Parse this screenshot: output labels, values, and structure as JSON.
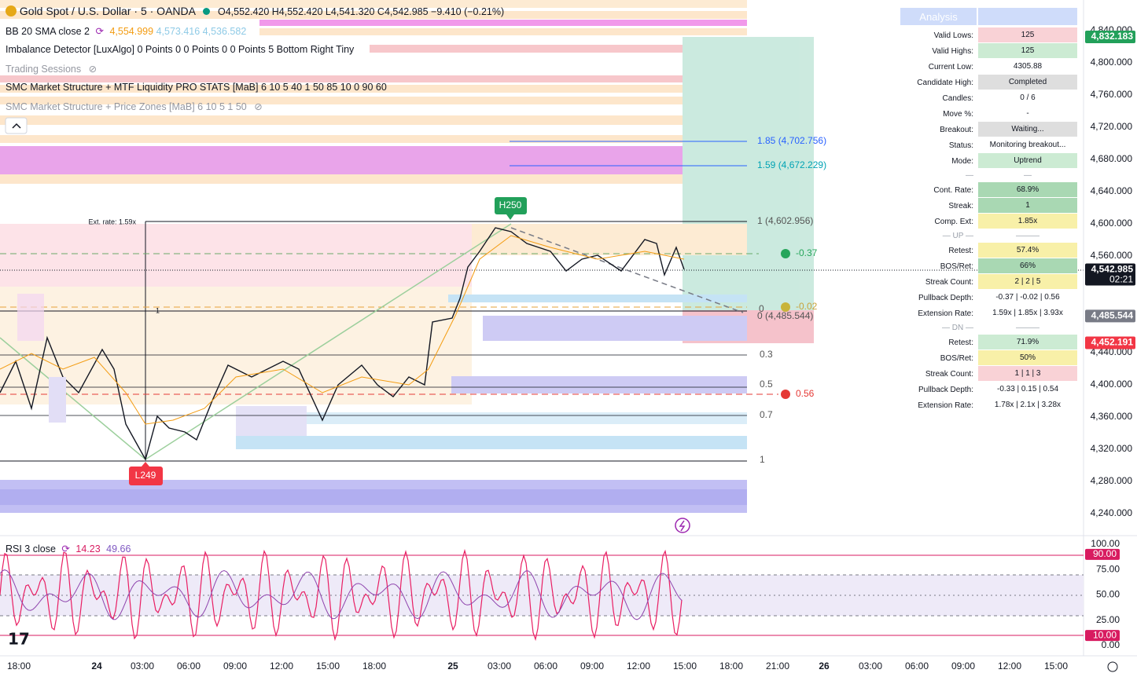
{
  "header": {
    "symbol": "Gold Spot / U.S. Dollar · 5 · OANDA",
    "ohlc": "O4,552.420 H4,552.420 L4,541.320 C4,542.985 −9.410 (−0.21%)"
  },
  "indicators": {
    "bb": {
      "name": "BB 20 SMA close 2",
      "values": [
        "4,554.999",
        "4,573.416",
        "4,536.582"
      ]
    },
    "imbalance": "Imbalance Detector [LuxAlgo] 0 Points 0 0 Points 0 0 Points 5 Bottom Right Tiny",
    "sessions": "Trading Sessions",
    "smc_stats": "SMC Market Structure + MTF Liquidity PRO STATS [MaB] 6 10 5 40 1 50 85 10 0 90 60",
    "smc_zones": "SMC Market Structure + Price Zones [MaB] 6 10 5 1 50"
  },
  "chart_labels": {
    "ext_rate": "Ext. rate: 1.59x",
    "high": "H250",
    "low": "L249",
    "fib_185": "1.85 (4,702.756)",
    "fib_159": "1.59 (4,672.229)",
    "fib_1_top": "1 (4,602.956)",
    "fib_0_mid": "0",
    "fib_0_price": "0 (4,485.544)",
    "fib_03": "0.3",
    "fib_05": "0.5",
    "fib_07": "0.7",
    "fib_1_bottom": "1",
    "dot_green": "-0.37",
    "dot_yellow": "-0.02",
    "dot_red": "0.56",
    "marker_one": "1"
  },
  "analysis": {
    "title": "Analysis",
    "rows": [
      {
        "label": "Valid Lows:",
        "value": "125",
        "color": "#f9d2d6"
      },
      {
        "label": "Valid Highs:",
        "value": "125",
        "color": "#ccebd3"
      },
      {
        "label": "Current Low:",
        "value": "4305.88",
        "color": "#ffffff"
      },
      {
        "label": "Candidate High:",
        "value": "Completed",
        "color": "#dedede"
      },
      {
        "label": "Candles:",
        "value": "0 / 6",
        "color": "#ffffff"
      },
      {
        "label": "Move %:",
        "value": "-",
        "color": "#ffffff"
      },
      {
        "label": "Breakout:",
        "value": "Waiting...",
        "color": "#dedede"
      },
      {
        "label": "Status:",
        "value": "Monitoring breakout...",
        "color": "#ffffff"
      },
      {
        "label": "Mode:",
        "value": "Uptrend",
        "color": "#ccebd3"
      },
      {
        "label": "—",
        "value": "—",
        "color": "#ffffff",
        "separator": true
      },
      {
        "label": "Cont. Rate:",
        "value": "68.9%",
        "color": "#a9d8b3"
      },
      {
        "label": "Streak:",
        "value": "1",
        "color": "#a9d8b3"
      },
      {
        "label": "Comp. Ext:",
        "value": "1.85x",
        "color": "#f8f0a8"
      },
      {
        "label": "— UP —",
        "value": "———",
        "color": "#ffffff",
        "separator": true
      },
      {
        "label": "Retest:",
        "value": "57.4%",
        "color": "#f8f0a8"
      },
      {
        "label": "BOS/Ret:",
        "value": "66%",
        "color": "#a9d8b3"
      },
      {
        "label": "Streak Count:",
        "value": "2 | 2 | 5",
        "color": "#f8f0a8"
      },
      {
        "label": "Pullback Depth:",
        "value": "-0.37 | -0.02 | 0.56",
        "color": "#ffffff"
      },
      {
        "label": "Extension Rate:",
        "value": "1.59x | 1.85x | 3.93x",
        "color": "#ffffff"
      },
      {
        "label": "— DN —",
        "value": "———",
        "color": "#ffffff",
        "separator": true
      },
      {
        "label": "Retest:",
        "value": "71.9%",
        "color": "#ccebd3"
      },
      {
        "label": "BOS/Ret:",
        "value": "50%",
        "color": "#f8f0a8"
      },
      {
        "label": "Streak Count:",
        "value": "1 | 1 | 3",
        "color": "#f9d2d6"
      },
      {
        "label": "Pullback Depth:",
        "value": "-0.33 | 0.15 | 0.54",
        "color": "#ffffff"
      },
      {
        "label": "Extension Rate:",
        "value": "1.78x | 2.1x | 3.28x",
        "color": "#ffffff"
      }
    ]
  },
  "price_axis": {
    "ticks": [
      "4,840.000",
      "4,800.000",
      "4,760.000",
      "4,720.000",
      "4,680.000",
      "4,640.000",
      "4,600.000",
      "4,560.000",
      "4,440.000",
      "4,400.000",
      "4,360.000",
      "4,320.000",
      "4,280.000",
      "4,240.000"
    ],
    "badges": [
      {
        "label": "4,832.183",
        "color": "#22a05a"
      },
      {
        "label": "4,542.985",
        "color": "#131722",
        "sub": "02:21"
      },
      {
        "label": "4,485.544",
        "color": "#787b86"
      },
      {
        "label": "4,452.191",
        "color": "#f23645"
      }
    ]
  },
  "rsi": {
    "name": "RSI 3 close",
    "values": [
      "14.23",
      "49.66"
    ],
    "ticks": [
      "100.00",
      "75.00",
      "50.00",
      "25.00",
      "0.00"
    ],
    "badges": [
      "90.00",
      "10.00"
    ]
  },
  "time_axis": [
    "18:00",
    "24",
    "03:00",
    "06:00",
    "09:00",
    "12:00",
    "15:00",
    "18:00",
    "25",
    "03:00",
    "06:00",
    "09:00",
    "12:00",
    "15:00",
    "18:00",
    "21:00",
    "26",
    "03:00",
    "06:00",
    "09:00",
    "12:00",
    "15:00"
  ]
}
